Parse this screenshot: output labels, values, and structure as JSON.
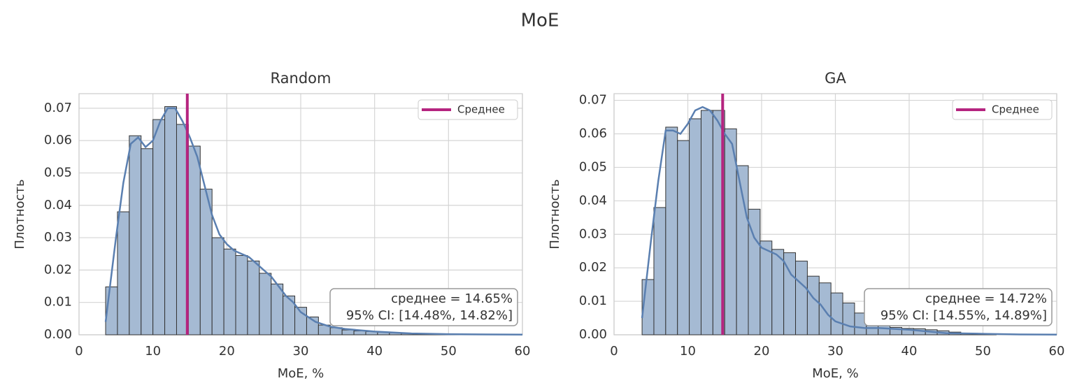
{
  "figure_title": "MoE",
  "chart_data": [
    {
      "type": "histogram",
      "title": "Random",
      "xlabel": "MoE, %",
      "ylabel": "Плотность",
      "bins": [
        3.6,
        5.2,
        6.8,
        8.4,
        10,
        11.6,
        13.2,
        14.8,
        16.4,
        18,
        19.6,
        21.2,
        22.8,
        24.4,
        26,
        27.6,
        29.2,
        30.8,
        32.4,
        34,
        35.6,
        37.2,
        38.8,
        40.4,
        42,
        43.6,
        45.2,
        46.8,
        48.4,
        50,
        51.6
      ],
      "values": [
        0.0148,
        0.038,
        0.0615,
        0.0575,
        0.0665,
        0.0705,
        0.065,
        0.0583,
        0.045,
        0.03,
        0.0265,
        0.0245,
        0.0228,
        0.019,
        0.0157,
        0.012,
        0.0085,
        0.0055,
        0.003,
        0.0022,
        0.0015,
        0.0012,
        0.001,
        0.0008,
        0.0006,
        0.0004,
        0.0003,
        0.0002,
        0.0001,
        0.0001
      ],
      "color": "#a5bad3",
      "edgecolor": "#333333",
      "kde": {
        "color": "#5a7fb0",
        "x": [
          3.6,
          5,
          6,
          7,
          8,
          9,
          10,
          11,
          12,
          13,
          14,
          15,
          16,
          17,
          18,
          19,
          20,
          21,
          22,
          23,
          24,
          25,
          26,
          27,
          28,
          29,
          30,
          32,
          34,
          36,
          40,
          45,
          50,
          55,
          60
        ],
        "y": [
          0.004,
          0.03,
          0.047,
          0.059,
          0.061,
          0.058,
          0.06,
          0.066,
          0.07,
          0.07,
          0.066,
          0.061,
          0.055,
          0.046,
          0.037,
          0.031,
          0.028,
          0.026,
          0.025,
          0.024,
          0.022,
          0.02,
          0.018,
          0.015,
          0.012,
          0.01,
          0.007,
          0.004,
          0.0025,
          0.0018,
          0.001,
          0.0004,
          0.0002,
          0.0001,
          5e-05
        ]
      },
      "mean": {
        "value": 14.65,
        "label": "Среднее",
        "color": "#b5247f"
      },
      "annotation": [
        "среднее = 14.65%",
        "95% CI: [14.48%, 14.82%]"
      ],
      "xlim": [
        0,
        60
      ],
      "ylim": [
        0,
        0.0745
      ],
      "xticks": [
        0,
        10,
        20,
        30,
        40,
        50,
        60
      ],
      "yticks": [
        {
          "value": 0,
          "label": "0.00"
        },
        {
          "value": 0.01,
          "label": "0.01"
        },
        {
          "value": 0.02,
          "label": "0.02"
        },
        {
          "value": 0.03,
          "label": "0.03"
        },
        {
          "value": 0.04,
          "label": "0.04"
        },
        {
          "value": 0.05,
          "label": "0.05"
        },
        {
          "value": 0.06,
          "label": "0.06"
        },
        {
          "value": 0.07,
          "label": "0.07"
        }
      ],
      "grid": true,
      "legend": "upper right"
    },
    {
      "type": "histogram",
      "title": "GA",
      "xlabel": "MoE, %",
      "ylabel": "Плотность",
      "bins": [
        3.8,
        5.4,
        7,
        8.6,
        10.2,
        11.8,
        13.4,
        15,
        16.6,
        18.2,
        19.8,
        21.4,
        23,
        24.6,
        26.2,
        27.8,
        29.4,
        31,
        32.6,
        34.2,
        35.8,
        37.4,
        39,
        40.6,
        42.2,
        43.8,
        45.4,
        47,
        48.6,
        50.2,
        51.8
      ],
      "values": [
        0.0165,
        0.038,
        0.062,
        0.058,
        0.0645,
        0.067,
        0.067,
        0.0615,
        0.0505,
        0.0375,
        0.028,
        0.0255,
        0.0245,
        0.022,
        0.0175,
        0.0155,
        0.0125,
        0.0095,
        0.0065,
        0.0032,
        0.0028,
        0.0022,
        0.0019,
        0.0018,
        0.0015,
        0.0012,
        0.0008,
        0.0005,
        0.0003,
        0.0002
      ],
      "color": "#a5bad3",
      "edgecolor": "#333333",
      "kde": {
        "color": "#5a7fb0",
        "x": [
          3.8,
          5,
          6,
          7,
          8,
          9,
          10,
          11,
          12,
          13,
          14,
          15,
          16,
          17,
          18,
          19,
          20,
          21,
          22,
          23,
          24,
          25,
          26,
          27,
          28,
          29,
          30,
          32,
          34,
          36,
          40,
          45,
          50,
          55,
          60
        ],
        "y": [
          0.005,
          0.028,
          0.046,
          0.061,
          0.061,
          0.06,
          0.063,
          0.067,
          0.068,
          0.067,
          0.064,
          0.06,
          0.057,
          0.046,
          0.035,
          0.029,
          0.026,
          0.025,
          0.024,
          0.022,
          0.018,
          0.016,
          0.014,
          0.011,
          0.009,
          0.006,
          0.004,
          0.0025,
          0.002,
          0.002,
          0.0015,
          0.0005,
          0.0003,
          0.0001,
          5e-05
        ]
      },
      "mean": {
        "value": 14.72,
        "label": "Среднее",
        "color": "#b5247f"
      },
      "annotation": [
        "среднее = 14.72%",
        "95% CI: [14.55%, 14.89%]"
      ],
      "xlim": [
        0,
        60
      ],
      "ylim": [
        0,
        0.072
      ],
      "xticks": [
        0,
        10,
        20,
        30,
        40,
        50,
        60
      ],
      "yticks": [
        {
          "value": 0,
          "label": "0.00"
        },
        {
          "value": 0.01,
          "label": "0.01"
        },
        {
          "value": 0.02,
          "label": "0.02"
        },
        {
          "value": 0.03,
          "label": "0.03"
        },
        {
          "value": 0.04,
          "label": "0.04"
        },
        {
          "value": 0.05,
          "label": "0.05"
        },
        {
          "value": 0.06,
          "label": "0.06"
        },
        {
          "value": 0.07,
          "label": "0.07"
        }
      ],
      "grid": true,
      "legend": "upper right"
    }
  ]
}
